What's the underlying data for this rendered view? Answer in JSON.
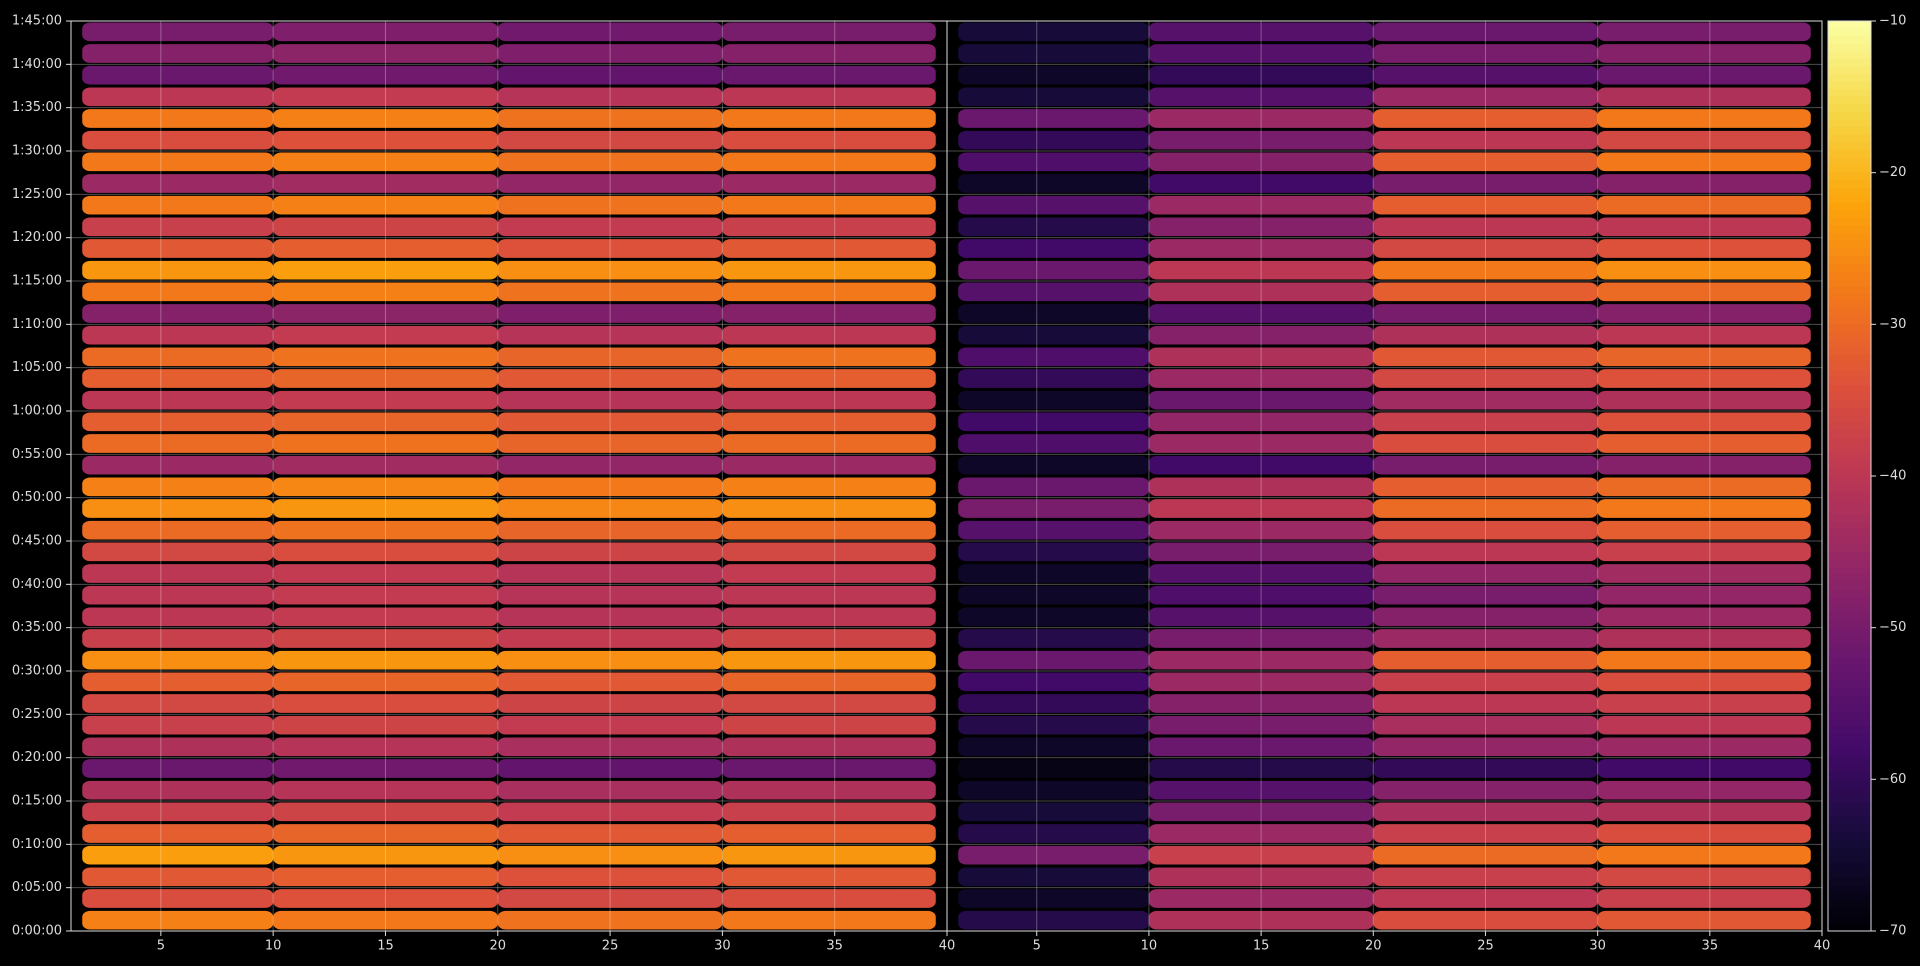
{
  "chart_data": {
    "type": "heatmap",
    "ylim": [
      0,
      6300
    ],
    "yticks": [
      {
        "value": 0,
        "label": "0:00:00"
      },
      {
        "value": 300,
        "label": "0:05:00"
      },
      {
        "value": 600,
        "label": "0:10:00"
      },
      {
        "value": 900,
        "label": "0:15:00"
      },
      {
        "value": 1200,
        "label": "0:20:00"
      },
      {
        "value": 1500,
        "label": "0:25:00"
      },
      {
        "value": 1800,
        "label": "0:30:00"
      },
      {
        "value": 2100,
        "label": "0:35:00"
      },
      {
        "value": 2400,
        "label": "0:40:00"
      },
      {
        "value": 2700,
        "label": "0:45:00"
      },
      {
        "value": 3000,
        "label": "0:50:00"
      },
      {
        "value": 3300,
        "label": "0:55:00"
      },
      {
        "value": 3600,
        "label": "1:00:00"
      },
      {
        "value": 3900,
        "label": "1:05:00"
      },
      {
        "value": 4200,
        "label": "1:10:00"
      },
      {
        "value": 4500,
        "label": "1:15:00"
      },
      {
        "value": 4800,
        "label": "1:20:00"
      },
      {
        "value": 5100,
        "label": "1:25:00"
      },
      {
        "value": 5400,
        "label": "1:30:00"
      },
      {
        "value": 5700,
        "label": "1:35:00"
      },
      {
        "value": 6000,
        "label": "1:40:00"
      },
      {
        "value": 6300,
        "label": "1:45:00"
      }
    ],
    "ybins": [
      0,
      150,
      300,
      450,
      600,
      750,
      900,
      1050,
      1200,
      1350,
      1500,
      1650,
      1800,
      1950,
      2100,
      2250,
      2400,
      2550,
      2700,
      2850,
      3000,
      3150,
      3300,
      3450,
      3600,
      3750,
      3900,
      4050,
      4200,
      4350,
      4500,
      4650,
      4800,
      4950,
      5100,
      5250,
      5400,
      5550,
      5700,
      5850,
      6000,
      6150,
      6300
    ],
    "clim": [
      -70,
      -10
    ],
    "cticks": [
      {
        "value": -10,
        "label": "−10"
      },
      {
        "value": -20,
        "label": "−20"
      },
      {
        "value": -30,
        "label": "−30"
      },
      {
        "value": -40,
        "label": "−40"
      },
      {
        "value": -50,
        "label": "−50"
      },
      {
        "value": -60,
        "label": "−60"
      },
      {
        "value": -70,
        "label": "−70"
      }
    ],
    "grid": true,
    "panels": [
      {
        "xlim": [
          1,
          40
        ],
        "xticks": [
          5,
          10,
          15,
          20,
          25,
          30,
          35,
          40
        ],
        "xbins": [
          1.5,
          10,
          20,
          30,
          39.5
        ],
        "values": [
          [
            -27,
            -28,
            -29,
            -28
          ],
          [
            -35,
            -34,
            -36,
            -35
          ],
          [
            -33,
            -32,
            -34,
            -33
          ],
          [
            -23,
            -24,
            -25,
            -24
          ],
          [
            -32,
            -31,
            -33,
            -32
          ],
          [
            -38,
            -37,
            -39,
            -38
          ],
          [
            -42,
            -41,
            -43,
            -42
          ],
          [
            -52,
            -51,
            -53,
            -52
          ],
          [
            -42,
            -41,
            -43,
            -42
          ],
          [
            -38,
            -37,
            -39,
            -37
          ],
          [
            -36,
            -35,
            -37,
            -36
          ],
          [
            -32,
            -31,
            -33,
            -31
          ],
          [
            -25,
            -24,
            -25,
            -24
          ],
          [
            -38,
            -37,
            -39,
            -37
          ],
          [
            -40,
            -39,
            -41,
            -40
          ],
          [
            -40,
            -39,
            -41,
            -40
          ],
          [
            -40,
            -39,
            -41,
            -39
          ],
          [
            -36,
            -35,
            -37,
            -36
          ],
          [
            -30,
            -29,
            -31,
            -30
          ],
          [
            -25,
            -24,
            -26,
            -25
          ],
          [
            -27,
            -26,
            -28,
            -27
          ],
          [
            -45,
            -44,
            -46,
            -45
          ],
          [
            -30,
            -29,
            -31,
            -30
          ],
          [
            -32,
            -31,
            -33,
            -32
          ],
          [
            -40,
            -39,
            -41,
            -40
          ],
          [
            -32,
            -31,
            -33,
            -32
          ],
          [
            -30,
            -29,
            -31,
            -29
          ],
          [
            -40,
            -39,
            -41,
            -40
          ],
          [
            -48,
            -47,
            -49,
            -48
          ],
          [
            -28,
            -27,
            -29,
            -28
          ],
          [
            -24,
            -23,
            -25,
            -24
          ],
          [
            -33,
            -32,
            -34,
            -33
          ],
          [
            -38,
            -37,
            -39,
            -38
          ],
          [
            -28,
            -27,
            -29,
            -28
          ],
          [
            -45,
            -44,
            -46,
            -45
          ],
          [
            -28,
            -27,
            -29,
            -28
          ],
          [
            -35,
            -34,
            -36,
            -35
          ],
          [
            -28,
            -27,
            -29,
            -28
          ],
          [
            -40,
            -39,
            -41,
            -40
          ],
          [
            -52,
            -51,
            -53,
            -52
          ],
          [
            -48,
            -47,
            -49,
            -48
          ],
          [
            -50,
            -49,
            -51,
            -50
          ]
        ]
      },
      {
        "xlim": [
          1,
          40
        ],
        "xticks": [
          5,
          10,
          15,
          20,
          25,
          30,
          35,
          40
        ],
        "xbins": [
          1.5,
          10,
          20,
          30,
          39.5
        ],
        "values": [
          [
            -62,
            -42,
            -35,
            -33
          ],
          [
            -66,
            -45,
            -40,
            -38
          ],
          [
            -64,
            -42,
            -38,
            -36
          ],
          [
            -50,
            -38,
            -30,
            -28
          ],
          [
            -62,
            -45,
            -38,
            -35
          ],
          [
            -64,
            -50,
            -43,
            -42
          ],
          [
            -66,
            -55,
            -48,
            -46
          ],
          [
            -68,
            -62,
            -60,
            -58
          ],
          [
            -66,
            -52,
            -46,
            -45
          ],
          [
            -62,
            -50,
            -43,
            -40
          ],
          [
            -60,
            -48,
            -40,
            -38
          ],
          [
            -58,
            -45,
            -38,
            -35
          ],
          [
            -52,
            -45,
            -32,
            -28
          ],
          [
            -62,
            -50,
            -45,
            -42
          ],
          [
            -66,
            -55,
            -48,
            -45
          ],
          [
            -66,
            -56,
            -50,
            -46
          ],
          [
            -66,
            -55,
            -46,
            -44
          ],
          [
            -62,
            -50,
            -40,
            -38
          ],
          [
            -55,
            -45,
            -35,
            -32
          ],
          [
            -50,
            -40,
            -30,
            -28
          ],
          [
            -52,
            -42,
            -32,
            -30
          ],
          [
            -66,
            -58,
            -50,
            -48
          ],
          [
            -56,
            -45,
            -35,
            -32
          ],
          [
            -58,
            -46,
            -38,
            -34
          ],
          [
            -66,
            -52,
            -44,
            -42
          ],
          [
            -60,
            -45,
            -36,
            -34
          ],
          [
            -56,
            -42,
            -33,
            -31
          ],
          [
            -64,
            -48,
            -42,
            -40
          ],
          [
            -66,
            -55,
            -50,
            -48
          ],
          [
            -55,
            -42,
            -32,
            -30
          ],
          [
            -52,
            -40,
            -28,
            -25
          ],
          [
            -58,
            -45,
            -36,
            -34
          ],
          [
            -62,
            -48,
            -40,
            -40
          ],
          [
            -55,
            -45,
            -32,
            -30
          ],
          [
            -66,
            -58,
            -50,
            -48
          ],
          [
            -56,
            -48,
            -32,
            -28
          ],
          [
            -60,
            -50,
            -40,
            -36
          ],
          [
            -52,
            -45,
            -32,
            -28
          ],
          [
            -64,
            -55,
            -45,
            -42
          ],
          [
            -66,
            -60,
            -55,
            -52
          ],
          [
            -64,
            -55,
            -50,
            -48
          ],
          [
            -64,
            -55,
            -52,
            -50
          ]
        ]
      }
    ]
  }
}
